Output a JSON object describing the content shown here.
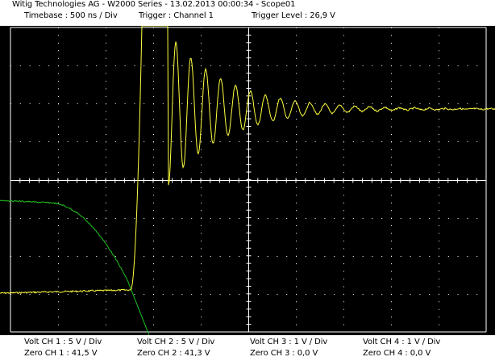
{
  "header": {
    "title": "Witig Technologies AG - W2000 Series  -  13.02.2013 00:00:34 - Scope01",
    "timebase": "Timebase : 500 ns / Div",
    "trigger": "Trigger : Channel 1",
    "trigger_level": "Trigger Level : 26,9 V"
  },
  "footer": {
    "ch1_volt": "Volt CH 1 : 5 V / Div",
    "ch1_zero": "Zero CH 1 : 41,5 V",
    "ch2_volt": "Volt CH 2 : 5 V / Div",
    "ch2_zero": "Zero CH 2 : 41,3 V",
    "ch3_volt": "Volt CH 3 : 1 V / Div",
    "ch3_zero": "Zero CH 3 : 0,0 V",
    "ch4_volt": "Volt CH 4 : 1 V / Div",
    "ch4_zero": "Zero CH 4 : 0,0 V"
  },
  "colors": {
    "screen_bg": "#000000",
    "grid": "#ffffff",
    "ch1_trace": "#ffff40",
    "ch2_trace": "#20c020"
  },
  "scope": {
    "divisions_x": 10,
    "divisions_y": 8
  }
}
